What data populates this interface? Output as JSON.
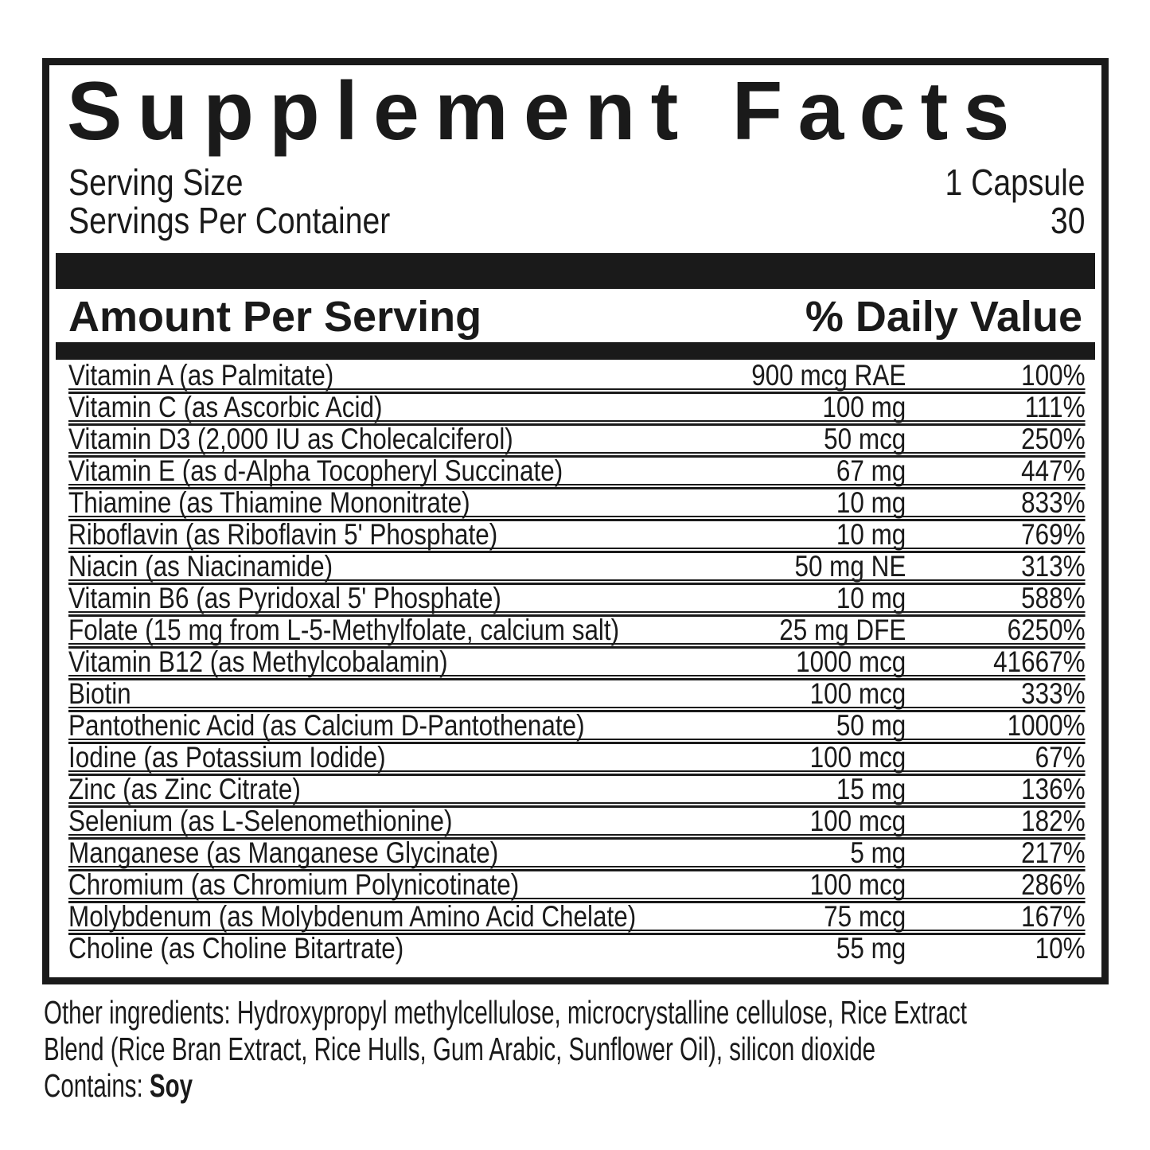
{
  "panel": {
    "title": "Supplement Facts",
    "serving_size_label": "Serving Size",
    "serving_size_value": "1 Capsule",
    "servings_per_container_label": "Servings Per Container",
    "servings_per_container_value": "30",
    "amount_per_serving_header": "Amount Per Serving",
    "daily_value_header": "% Daily Value"
  },
  "nutrients": [
    {
      "name": "Vitamin A (as Palmitate)",
      "amount": "900 mcg RAE",
      "daily_value": "100%"
    },
    {
      "name": "Vitamin C (as Ascorbic Acid)",
      "amount": "100 mg",
      "daily_value": "111%"
    },
    {
      "name": "Vitamin D3 (2,000 IU as Cholecalciferol)",
      "amount": "50 mcg",
      "daily_value": "250%"
    },
    {
      "name": "Vitamin E (as d-Alpha Tocopheryl Succinate)",
      "amount": "67 mg",
      "daily_value": "447%"
    },
    {
      "name": "Thiamine (as Thiamine Mononitrate)",
      "amount": "10 mg",
      "daily_value": "833%"
    },
    {
      "name": "Riboflavin (as Riboflavin 5' Phosphate)",
      "amount": "10 mg",
      "daily_value": "769%"
    },
    {
      "name": "Niacin (as Niacinamide)",
      "amount": "50 mg NE",
      "daily_value": "313%"
    },
    {
      "name": "Vitamin B6 (as Pyridoxal 5' Phosphate)",
      "amount": "10 mg",
      "daily_value": "588%"
    },
    {
      "name": "Folate (15 mg from L-5-Methylfolate, calcium salt)",
      "amount": "25 mg DFE",
      "daily_value": "6250%"
    },
    {
      "name": "Vitamin B12 (as Methylcobalamin)",
      "amount": "1000 mcg",
      "daily_value": "41667%"
    },
    {
      "name": "Biotin",
      "amount": "100 mcg",
      "daily_value": "333%"
    },
    {
      "name": "Pantothenic Acid (as Calcium D-Pantothenate)",
      "amount": "50 mg",
      "daily_value": "1000%"
    },
    {
      "name": "Iodine (as Potassium Iodide)",
      "amount": "100 mcg",
      "daily_value": "67%"
    },
    {
      "name": "Zinc (as Zinc Citrate)",
      "amount": "15 mg",
      "daily_value": "136%"
    },
    {
      "name": "Selenium (as L-Selenomethionine)",
      "amount": "100 mcg",
      "daily_value": "182%"
    },
    {
      "name": "Manganese (as Manganese Glycinate)",
      "amount": "5 mg",
      "daily_value": "217%"
    },
    {
      "name": "Chromium (as Chromium Polynicotinate)",
      "amount": "100 mcg",
      "daily_value": "286%"
    },
    {
      "name": "Molybdenum (as Molybdenum Amino Acid Chelate)",
      "amount": "75 mcg",
      "daily_value": "167%"
    },
    {
      "name": "Choline (as Choline Bitartrate)",
      "amount": "55 mg",
      "daily_value": "10%"
    }
  ],
  "footer": {
    "other_ingredients_lines": [
      "Other ingredients: Hydroxypropyl methylcellulose, microcrystalline cellulose, Rice Extract",
      "Blend (Rice Bran Extract, Rice Hulls, Gum Arabic, Sunflower Oil), silicon dioxide"
    ],
    "contains_label": "Contains:",
    "contains_value": "Soy"
  },
  "colors": {
    "text": "#1a1a1a",
    "background": "#ffffff"
  }
}
